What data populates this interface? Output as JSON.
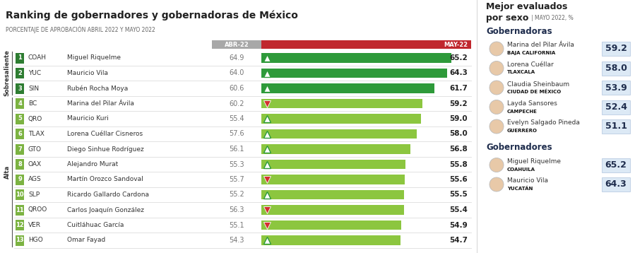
{
  "chart_data": {
    "type": "bar",
    "orientation": "horizontal",
    "title": "Ranking de gobernadores y gobernadoras de México",
    "subtitle": "PORCENTAJE DE APROBACIÓN ABRIL 2022 Y MAYO 2022",
    "ranks": [
      1,
      2,
      3,
      4,
      5,
      6,
      7,
      8,
      9,
      10,
      11,
      12,
      13
    ],
    "states": [
      "COAH",
      "YUC",
      "SIN",
      "BC",
      "QRO",
      "TLAX",
      "GTO",
      "OAX",
      "AGS",
      "SLP",
      "QROO",
      "VER",
      "HGO"
    ],
    "categories": [
      "Miguel Riquelme",
      "Mauricio Vila",
      "Rubén Rocha Moya",
      "Marina del Pilar Ávila",
      "Mauricio Kuri",
      "Lorena Cuéllar Cisneros",
      "Diego Sinhue Rodríguez",
      "Alejandro Murat",
      "Martín Orozco Sandoval",
      "Ricardo Gallardo Cardona",
      "Carlos Joaquín González",
      "Cuitláhuac García",
      "Omar Fayad"
    ],
    "groups": [
      "Sobresaliente",
      "Sobresaliente",
      "Sobresaliente",
      "Alta",
      "Alta",
      "Alta",
      "Alta",
      "Alta",
      "Alta",
      "Alta",
      "Alta",
      "Alta",
      "Alta"
    ],
    "series": [
      {
        "name": "ABR-22",
        "values": [
          64.9,
          64.0,
          60.6,
          60.2,
          55.4,
          57.6,
          56.1,
          55.3,
          55.7,
          55.2,
          56.3,
          55.1,
          54.3
        ]
      },
      {
        "name": "MAY-22",
        "values": [
          65.2,
          64.3,
          61.7,
          59.2,
          59.0,
          58.0,
          56.8,
          55.8,
          55.6,
          55.5,
          55.4,
          54.9,
          54.7
        ],
        "colors": [
          "#2e9a3a",
          "#2e9a3a",
          "#2e9a3a",
          "#8cc63f",
          "#8cc63f",
          "#8cc63f",
          "#8cc63f",
          "#8cc63f",
          "#8cc63f",
          "#8cc63f",
          "#8cc63f",
          "#8cc63f",
          "#8cc63f"
        ]
      }
    ],
    "xlim": [
      26,
      69
    ],
    "data_labels": true,
    "tick_labels": false
  },
  "side_panel": {
    "title": "Mejor evaluados",
    "title2": "por sexo",
    "note": "| MAYO 2022, %",
    "sections": [
      {
        "heading": "Gobernadoras",
        "entries": [
          {
            "name": "Marina del Pilar Ávila",
            "state": "BAJA CALIFORNIA",
            "value": 59.2
          },
          {
            "name": "Lorena Cuéllar",
            "state": "TLAXCALA",
            "value": 58.0
          },
          {
            "name": "Claudia Sheinbaum",
            "state": "CIUDAD DE MÉXICO",
            "value": 53.9
          },
          {
            "name": "Layda Sansores",
            "state": "CAMPECHE",
            "value": 52.4
          },
          {
            "name": "Evelyn Salgado Pineda",
            "state": "GUERRERO",
            "value": 51.1
          }
        ]
      },
      {
        "heading": "Gobernadores",
        "entries": [
          {
            "name": "Miguel Riquelme",
            "state": "COAHUILA",
            "value": 65.2
          },
          {
            "name": "Mauricio Vila",
            "state": "YUCATÁN",
            "value": 64.3
          }
        ]
      }
    ]
  }
}
